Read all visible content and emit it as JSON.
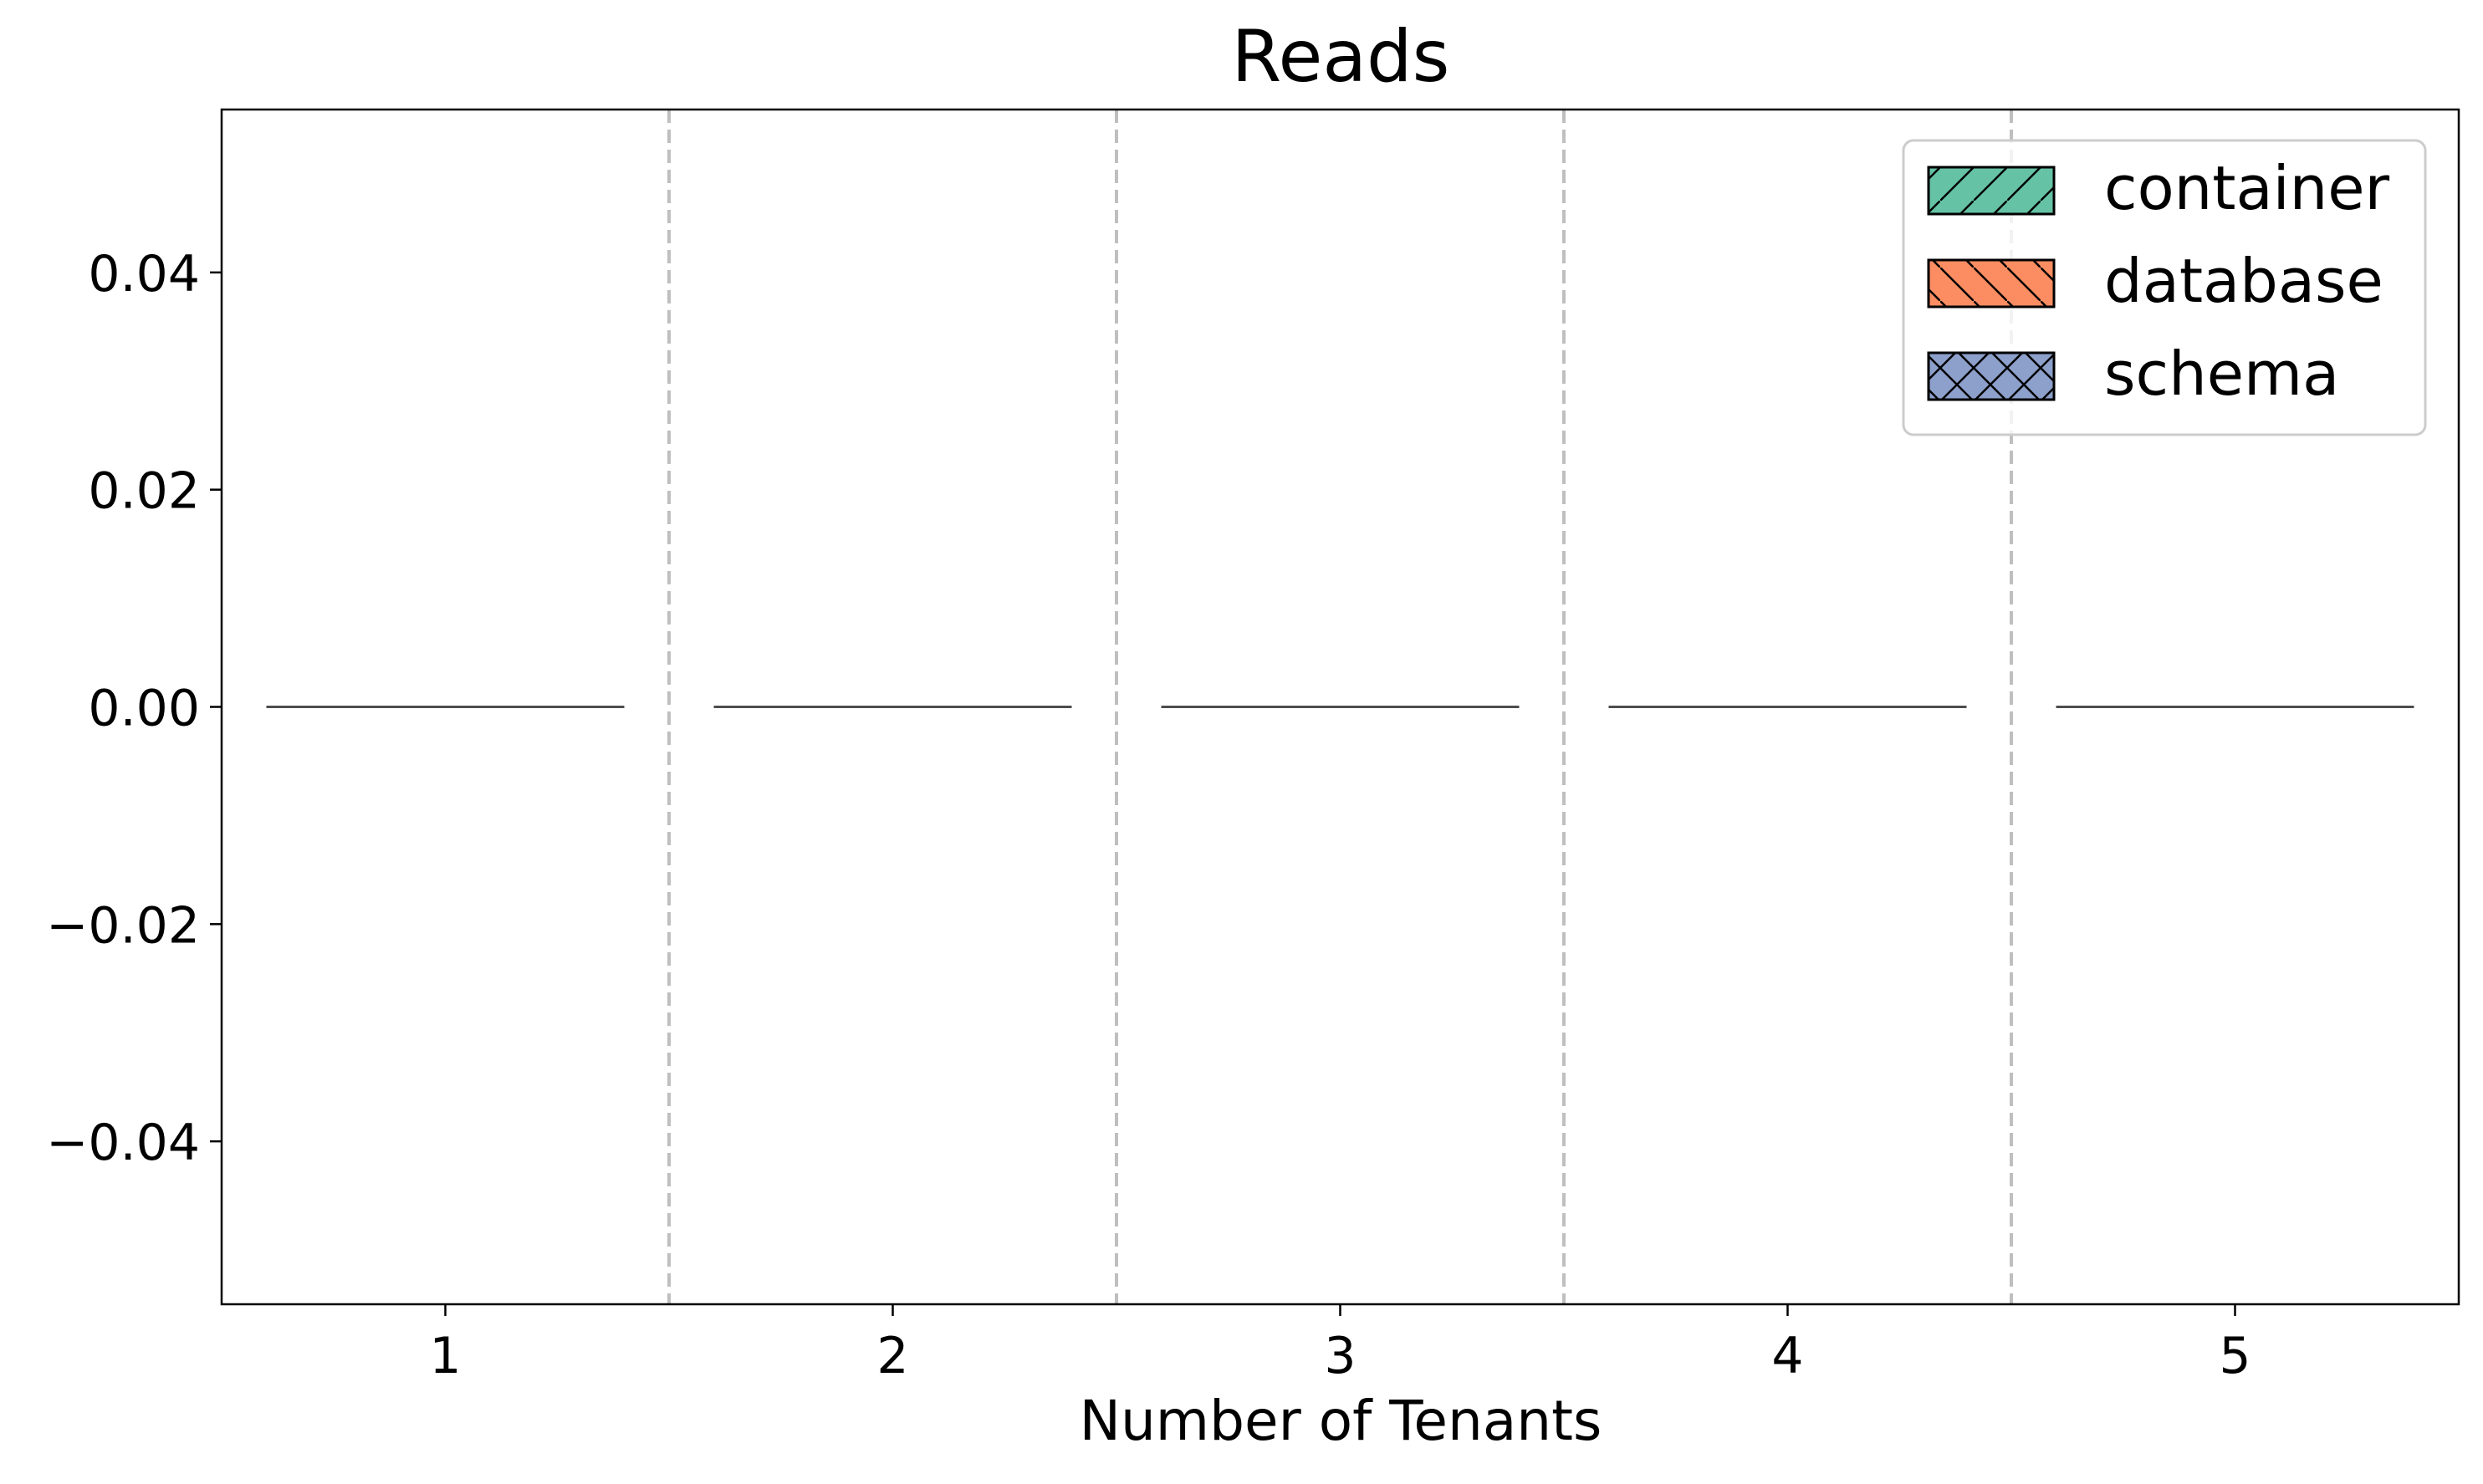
{
  "chart_data": {
    "type": "bar",
    "title": "Reads",
    "xlabel": "Number of Tenants",
    "ylabel": "",
    "categories": [
      "1",
      "2",
      "3",
      "4",
      "5"
    ],
    "yticks": [
      -0.04,
      -0.02,
      0.0,
      0.02,
      0.04
    ],
    "ytick_labels": [
      "−0.04",
      "−0.02",
      "0.00",
      "0.02",
      "0.04"
    ],
    "ylim": [
      -0.055,
      0.055
    ],
    "grid": false,
    "group_separators": true,
    "legend_position": "top-right",
    "series": [
      {
        "name": "container",
        "color": "#66c2a5",
        "hatch": "/",
        "values": [
          0,
          0,
          0,
          0,
          0
        ]
      },
      {
        "name": "database",
        "color": "#fc8d62",
        "hatch": "\\",
        "values": [
          0,
          0,
          0,
          0,
          0
        ]
      },
      {
        "name": "schema",
        "color": "#8da0cb",
        "hatch": "x",
        "values": [
          0,
          0,
          0,
          0,
          0
        ]
      }
    ],
    "bar_edge_color": "#4d4d4d",
    "separator_color": "#bfbfbf"
  }
}
